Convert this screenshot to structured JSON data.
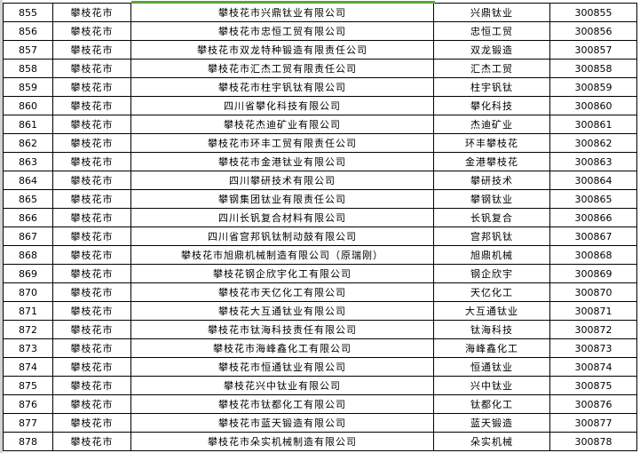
{
  "accent_color": "#5aa33c",
  "rows": [
    {
      "no": "855",
      "city": "攀枝花市",
      "company": "攀枝花市兴鼎钛业有限公司",
      "short": "兴鼎钛业",
      "code": "300855"
    },
    {
      "no": "856",
      "city": "攀枝花市",
      "company": "攀枝花市忠恒工贸有限公司",
      "short": "忠恒工贸",
      "code": "300856"
    },
    {
      "no": "857",
      "city": "攀枝花市",
      "company": "攀枝花市双龙特种锻造有限责任公司",
      "short": "双龙锻造",
      "code": "300857"
    },
    {
      "no": "858",
      "city": "攀枝花市",
      "company": "攀枝花市汇杰工贸有限责任公司",
      "short": "汇杰工贸",
      "code": "300858"
    },
    {
      "no": "859",
      "city": "攀枝花市",
      "company": "攀枝花市柱宇钒钛有限公司",
      "short": "柱宇钒钛",
      "code": "300859"
    },
    {
      "no": "860",
      "city": "攀枝花市",
      "company": "四川省攀化科技有限公司",
      "short": "攀化科技",
      "code": "300860"
    },
    {
      "no": "861",
      "city": "攀枝花市",
      "company": "攀枝花杰迪矿业有限公司",
      "short": "杰迪矿业",
      "code": "300861"
    },
    {
      "no": "862",
      "city": "攀枝花市",
      "company": "攀枝花市环丰工贸有限责任公司",
      "short": "环丰攀枝花",
      "code": "300862"
    },
    {
      "no": "863",
      "city": "攀枝花市",
      "company": "攀枝花市金港钛业有限公司",
      "short": "金港攀枝花",
      "code": "300863"
    },
    {
      "no": "864",
      "city": "攀枝花市",
      "company": "四川攀研技术有限公司",
      "short": "攀研技术",
      "code": "300864"
    },
    {
      "no": "865",
      "city": "攀枝花市",
      "company": "攀钢集团钛业有限责任公司",
      "short": "攀钢钛业",
      "code": "300865"
    },
    {
      "no": "866",
      "city": "攀枝花市",
      "company": "四川长钒复合材料有限公司",
      "short": "长钒复合",
      "code": "300866"
    },
    {
      "no": "867",
      "city": "攀枝花市",
      "company": "四川省宫邦钒钛制动鼓有限公司",
      "short": "宫邦钒钛",
      "code": "300867"
    },
    {
      "no": "868",
      "city": "攀枝花市",
      "company": "攀枝花市旭鼎机械制造有限公司（原瑞刚）",
      "short": "旭鼎机械",
      "code": "300868"
    },
    {
      "no": "869",
      "city": "攀枝花市",
      "company": "攀枝花钢企欣宇化工有限公司",
      "short": "钢企欣宇",
      "code": "300869"
    },
    {
      "no": "870",
      "city": "攀枝花市",
      "company": "攀枝花市天亿化工有限公司",
      "short": "天亿化工",
      "code": "300870"
    },
    {
      "no": "871",
      "city": "攀枝花市",
      "company": "攀枝花大互通钛业有限公司",
      "short": "大互通钛业",
      "code": "300871"
    },
    {
      "no": "872",
      "city": "攀枝花市",
      "company": "攀枝花市钛海科技责任有限公司",
      "short": "钛海科技",
      "code": "300872"
    },
    {
      "no": "873",
      "city": "攀枝花市",
      "company": "攀枝花市海峰鑫化工有限公司",
      "short": "海峰鑫化工",
      "code": "300873"
    },
    {
      "no": "874",
      "city": "攀枝花市",
      "company": "攀枝花市恒通钛业有限公司",
      "short": "恒通钛业",
      "code": "300874"
    },
    {
      "no": "875",
      "city": "攀枝花市",
      "company": "攀枝花兴中钛业有限公司",
      "short": "兴中钛业",
      "code": "300875"
    },
    {
      "no": "876",
      "city": "攀枝花市",
      "company": "攀枝花市钛都化工有限公司",
      "short": "钛都化工",
      "code": "300876"
    },
    {
      "no": "877",
      "city": "攀枝花市",
      "company": "攀枝花市蓝天锻造有限公司",
      "short": "蓝天锻造",
      "code": "300877"
    },
    {
      "no": "878",
      "city": "攀枝花市",
      "company": "攀枝花市朵实机械制造有限公司",
      "short": "朵实机械",
      "code": "300878"
    }
  ]
}
